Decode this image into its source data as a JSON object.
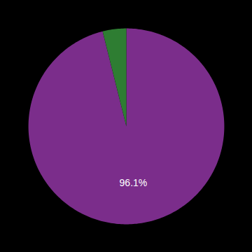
{
  "chart_data": {
    "type": "pie",
    "values": [
      96.1,
      3.9
    ],
    "colors": [
      "#7b2d8b",
      "#2e7d32"
    ],
    "data_labels": true,
    "value_labels": [
      "96.1%",
      null
    ]
  }
}
